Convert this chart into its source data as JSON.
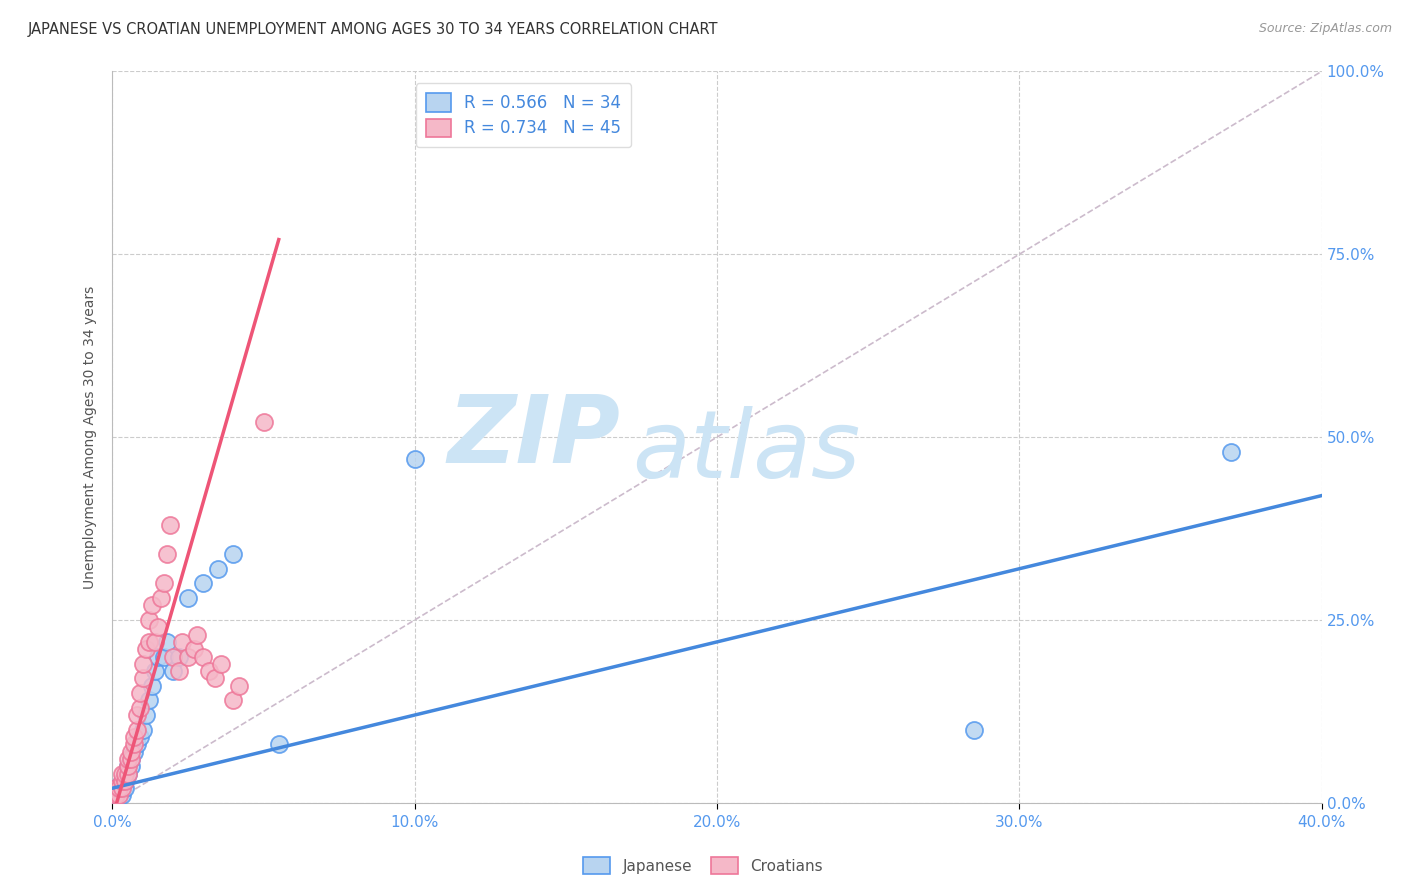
{
  "title": "JAPANESE VS CROATIAN UNEMPLOYMENT AMONG AGES 30 TO 34 YEARS CORRELATION CHART",
  "source": "Source: ZipAtlas.com",
  "xlabel_vals": [
    0.0,
    0.1,
    0.2,
    0.3,
    0.4
  ],
  "ylabel_vals": [
    0.0,
    0.25,
    0.5,
    0.75,
    1.0
  ],
  "ylabel_label": "Unemployment Among Ages 30 to 34 years",
  "legend_label1": "Japanese",
  "legend_label2": "Croatians",
  "r1": 0.566,
  "n1": 34,
  "r2": 0.734,
  "n2": 45,
  "color_japanese_fill": "#b8d4f0",
  "color_croatians_fill": "#f5b8c8",
  "color_japanese_edge": "#5599ee",
  "color_croatians_edge": "#ee7799",
  "color_japanese_line": "#4488dd",
  "color_croatians_line": "#ee5577",
  "color_axis_ticks": "#5599ee",
  "color_legend_text": "#4488dd",
  "watermark_color": "#cce4f5",
  "watermark_text": "ZIPatlas",
  "japanese_line_x": [
    0.0,
    0.4
  ],
  "japanese_line_y": [
    0.02,
    0.42
  ],
  "croatian_line_x": [
    0.0,
    0.055
  ],
  "croatian_line_y": [
    -0.02,
    0.77
  ],
  "diag_line_x": [
    0.0,
    0.4
  ],
  "diag_line_y": [
    0.0,
    1.0
  ],
  "japanese_x": [
    0.001,
    0.001,
    0.002,
    0.002,
    0.003,
    0.003,
    0.003,
    0.004,
    0.004,
    0.005,
    0.005,
    0.006,
    0.006,
    0.007,
    0.008,
    0.009,
    0.01,
    0.011,
    0.012,
    0.013,
    0.014,
    0.015,
    0.017,
    0.018,
    0.02,
    0.022,
    0.025,
    0.03,
    0.035,
    0.04,
    0.055,
    0.1,
    0.285,
    0.37
  ],
  "japanese_y": [
    0.01,
    0.02,
    0.01,
    0.02,
    0.01,
    0.02,
    0.03,
    0.02,
    0.03,
    0.04,
    0.05,
    0.05,
    0.06,
    0.07,
    0.08,
    0.09,
    0.1,
    0.12,
    0.14,
    0.16,
    0.18,
    0.2,
    0.2,
    0.22,
    0.18,
    0.2,
    0.28,
    0.3,
    0.32,
    0.34,
    0.08,
    0.47,
    0.1,
    0.48
  ],
  "croatian_x": [
    0.001,
    0.001,
    0.002,
    0.002,
    0.003,
    0.003,
    0.003,
    0.004,
    0.004,
    0.005,
    0.005,
    0.005,
    0.006,
    0.006,
    0.007,
    0.007,
    0.008,
    0.008,
    0.009,
    0.009,
    0.01,
    0.01,
    0.011,
    0.012,
    0.012,
    0.013,
    0.014,
    0.015,
    0.016,
    0.017,
    0.018,
    0.019,
    0.02,
    0.022,
    0.023,
    0.025,
    0.027,
    0.028,
    0.03,
    0.032,
    0.034,
    0.036,
    0.04,
    0.042,
    0.05
  ],
  "croatian_y": [
    0.01,
    0.02,
    0.01,
    0.02,
    0.02,
    0.03,
    0.04,
    0.03,
    0.04,
    0.04,
    0.05,
    0.06,
    0.06,
    0.07,
    0.08,
    0.09,
    0.1,
    0.12,
    0.13,
    0.15,
    0.17,
    0.19,
    0.21,
    0.22,
    0.25,
    0.27,
    0.22,
    0.24,
    0.28,
    0.3,
    0.34,
    0.38,
    0.2,
    0.18,
    0.22,
    0.2,
    0.21,
    0.23,
    0.2,
    0.18,
    0.17,
    0.19,
    0.14,
    0.16,
    0.52
  ],
  "xlim": [
    0.0,
    0.4
  ],
  "ylim": [
    0.0,
    1.0
  ],
  "figsize": [
    14.06,
    8.92
  ],
  "dpi": 100
}
